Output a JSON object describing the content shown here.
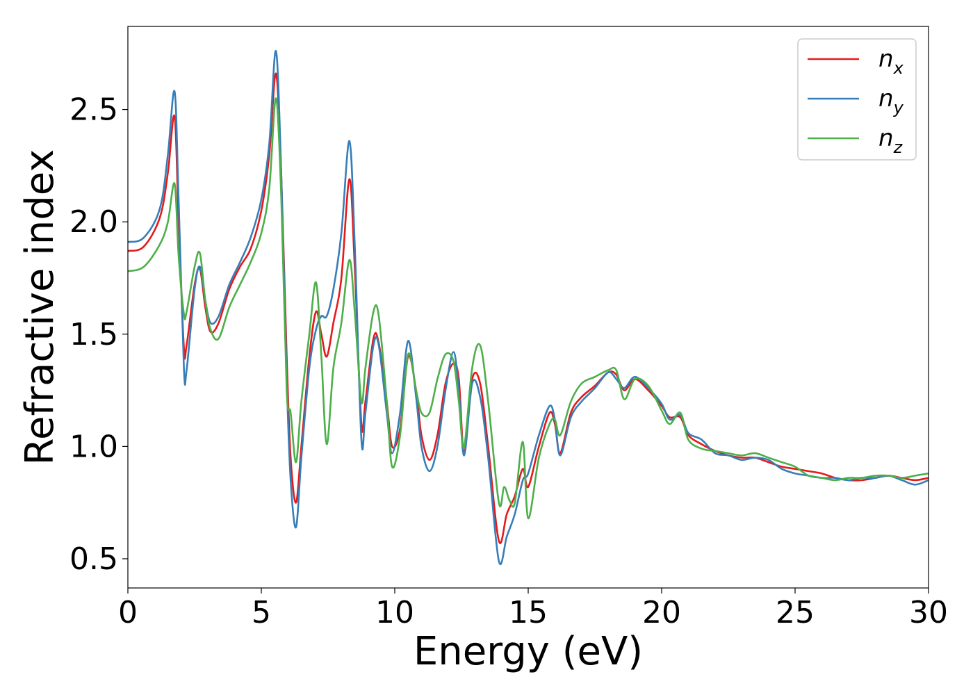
{
  "chart_data": {
    "type": "line",
    "xlabel": "Energy (eV)",
    "ylabel": "Refractive index",
    "xlim": [
      0,
      30
    ],
    "ylim": [
      0.37,
      2.87
    ],
    "xticks": [
      0,
      5,
      10,
      15,
      20,
      25,
      30
    ],
    "xtick_labels": [
      "0",
      "5",
      "10",
      "15",
      "20",
      "25",
      "30"
    ],
    "yticks": [
      0.5,
      1.0,
      1.5,
      2.0,
      2.5
    ],
    "ytick_labels": [
      "0.5",
      "1.0",
      "1.5",
      "2.0",
      "2.5"
    ],
    "grid": false,
    "legend_position": "top-right",
    "series": [
      {
        "name": "n",
        "sub": "x",
        "color": "#e41a1c",
        "points": [
          [
            0,
            1.87
          ],
          [
            0.6,
            1.89
          ],
          [
            1.2,
            2.02
          ],
          [
            1.5,
            2.22
          ],
          [
            1.75,
            2.47
          ],
          [
            1.9,
            2.0
          ],
          [
            2.1,
            1.44
          ],
          [
            2.2,
            1.45
          ],
          [
            2.5,
            1.72
          ],
          [
            2.7,
            1.79
          ],
          [
            2.9,
            1.62
          ],
          [
            3.1,
            1.51
          ],
          [
            3.4,
            1.55
          ],
          [
            3.8,
            1.7
          ],
          [
            4.2,
            1.8
          ],
          [
            4.6,
            1.88
          ],
          [
            5.0,
            2.05
          ],
          [
            5.3,
            2.3
          ],
          [
            5.55,
            2.66
          ],
          [
            5.75,
            2.2
          ],
          [
            5.95,
            1.4
          ],
          [
            6.1,
            0.95
          ],
          [
            6.3,
            0.75
          ],
          [
            6.5,
            1.0
          ],
          [
            6.8,
            1.4
          ],
          [
            7.05,
            1.6
          ],
          [
            7.25,
            1.5
          ],
          [
            7.45,
            1.4
          ],
          [
            7.7,
            1.55
          ],
          [
            8.0,
            1.75
          ],
          [
            8.3,
            2.19
          ],
          [
            8.5,
            1.8
          ],
          [
            8.75,
            1.1
          ],
          [
            8.9,
            1.2
          ],
          [
            9.2,
            1.48
          ],
          [
            9.4,
            1.46
          ],
          [
            9.7,
            1.2
          ],
          [
            9.9,
            1.0
          ],
          [
            10.2,
            1.08
          ],
          [
            10.5,
            1.4
          ],
          [
            10.8,
            1.25
          ],
          [
            11.0,
            1.05
          ],
          [
            11.3,
            0.94
          ],
          [
            11.6,
            1.05
          ],
          [
            11.9,
            1.28
          ],
          [
            12.2,
            1.37
          ],
          [
            12.4,
            1.3
          ],
          [
            12.6,
            0.98
          ],
          [
            12.9,
            1.3
          ],
          [
            13.2,
            1.28
          ],
          [
            13.5,
            1.0
          ],
          [
            13.9,
            0.58
          ],
          [
            14.2,
            0.7
          ],
          [
            14.5,
            0.78
          ],
          [
            14.8,
            0.9
          ],
          [
            15.0,
            0.82
          ],
          [
            15.4,
            1.0
          ],
          [
            15.8,
            1.15
          ],
          [
            16.0,
            1.1
          ],
          [
            16.2,
            0.97
          ],
          [
            16.6,
            1.15
          ],
          [
            17.0,
            1.22
          ],
          [
            17.5,
            1.27
          ],
          [
            18.0,
            1.33
          ],
          [
            18.3,
            1.32
          ],
          [
            18.6,
            1.25
          ],
          [
            19.0,
            1.3
          ],
          [
            19.5,
            1.25
          ],
          [
            20.0,
            1.18
          ],
          [
            20.3,
            1.13
          ],
          [
            20.7,
            1.13
          ],
          [
            21.0,
            1.05
          ],
          [
            21.5,
            1.01
          ],
          [
            22.0,
            0.98
          ],
          [
            22.5,
            0.96
          ],
          [
            23.0,
            0.95
          ],
          [
            23.5,
            0.95
          ],
          [
            24.0,
            0.93
          ],
          [
            24.5,
            0.91
          ],
          [
            25.0,
            0.9
          ],
          [
            25.5,
            0.89
          ],
          [
            26.0,
            0.88
          ],
          [
            26.5,
            0.86
          ],
          [
            27.0,
            0.85
          ],
          [
            27.5,
            0.85
          ],
          [
            28.0,
            0.86
          ],
          [
            28.5,
            0.87
          ],
          [
            29.0,
            0.86
          ],
          [
            29.5,
            0.85
          ],
          [
            30.0,
            0.86
          ]
        ]
      },
      {
        "name": "n",
        "sub": "y",
        "color": "#377eb8",
        "points": [
          [
            0,
            1.91
          ],
          [
            0.6,
            1.93
          ],
          [
            1.2,
            2.06
          ],
          [
            1.5,
            2.3
          ],
          [
            1.75,
            2.58
          ],
          [
            1.9,
            2.1
          ],
          [
            2.1,
            1.35
          ],
          [
            2.2,
            1.34
          ],
          [
            2.5,
            1.7
          ],
          [
            2.7,
            1.8
          ],
          [
            2.9,
            1.65
          ],
          [
            3.1,
            1.55
          ],
          [
            3.4,
            1.58
          ],
          [
            3.8,
            1.72
          ],
          [
            4.2,
            1.82
          ],
          [
            4.6,
            1.93
          ],
          [
            5.0,
            2.1
          ],
          [
            5.3,
            2.35
          ],
          [
            5.55,
            2.76
          ],
          [
            5.75,
            2.2
          ],
          [
            5.95,
            1.3
          ],
          [
            6.1,
            0.85
          ],
          [
            6.3,
            0.64
          ],
          [
            6.5,
            0.95
          ],
          [
            6.8,
            1.35
          ],
          [
            7.05,
            1.52
          ],
          [
            7.25,
            1.58
          ],
          [
            7.45,
            1.58
          ],
          [
            7.7,
            1.7
          ],
          [
            8.0,
            1.95
          ],
          [
            8.3,
            2.36
          ],
          [
            8.5,
            1.9
          ],
          [
            8.75,
            1.03
          ],
          [
            8.9,
            1.15
          ],
          [
            9.2,
            1.45
          ],
          [
            9.4,
            1.45
          ],
          [
            9.7,
            1.15
          ],
          [
            9.9,
            0.97
          ],
          [
            10.2,
            1.15
          ],
          [
            10.5,
            1.47
          ],
          [
            10.8,
            1.22
          ],
          [
            11.0,
            1.0
          ],
          [
            11.3,
            0.89
          ],
          [
            11.6,
            1.0
          ],
          [
            11.9,
            1.25
          ],
          [
            12.2,
            1.42
          ],
          [
            12.4,
            1.25
          ],
          [
            12.6,
            0.96
          ],
          [
            12.9,
            1.28
          ],
          [
            13.2,
            1.22
          ],
          [
            13.5,
            0.95
          ],
          [
            13.9,
            0.49
          ],
          [
            14.2,
            0.6
          ],
          [
            14.5,
            0.7
          ],
          [
            14.8,
            0.85
          ],
          [
            15.0,
            0.88
          ],
          [
            15.4,
            1.05
          ],
          [
            15.8,
            1.18
          ],
          [
            16.0,
            1.12
          ],
          [
            16.2,
            0.96
          ],
          [
            16.6,
            1.13
          ],
          [
            17.0,
            1.2
          ],
          [
            17.5,
            1.26
          ],
          [
            18.0,
            1.33
          ],
          [
            18.3,
            1.3
          ],
          [
            18.6,
            1.26
          ],
          [
            19.0,
            1.31
          ],
          [
            19.5,
            1.26
          ],
          [
            20.0,
            1.19
          ],
          [
            20.3,
            1.12
          ],
          [
            20.7,
            1.14
          ],
          [
            21.0,
            1.06
          ],
          [
            21.5,
            1.03
          ],
          [
            22.0,
            0.97
          ],
          [
            22.5,
            0.96
          ],
          [
            23.0,
            0.94
          ],
          [
            23.5,
            0.95
          ],
          [
            24.0,
            0.94
          ],
          [
            24.5,
            0.9
          ],
          [
            25.0,
            0.88
          ],
          [
            25.5,
            0.87
          ],
          [
            26.0,
            0.86
          ],
          [
            26.5,
            0.86
          ],
          [
            27.0,
            0.85
          ],
          [
            27.5,
            0.86
          ],
          [
            28.0,
            0.86
          ],
          [
            28.5,
            0.87
          ],
          [
            29.0,
            0.85
          ],
          [
            29.5,
            0.83
          ],
          [
            30.0,
            0.85
          ]
        ]
      },
      {
        "name": "n",
        "sub": "z",
        "color": "#4daf4a",
        "points": [
          [
            0,
            1.78
          ],
          [
            0.6,
            1.8
          ],
          [
            1.2,
            1.9
          ],
          [
            1.5,
            2.0
          ],
          [
            1.75,
            2.17
          ],
          [
            1.9,
            1.85
          ],
          [
            2.1,
            1.59
          ],
          [
            2.2,
            1.6
          ],
          [
            2.5,
            1.8
          ],
          [
            2.7,
            1.86
          ],
          [
            2.9,
            1.65
          ],
          [
            3.1,
            1.52
          ],
          [
            3.4,
            1.48
          ],
          [
            3.8,
            1.62
          ],
          [
            4.2,
            1.72
          ],
          [
            4.6,
            1.82
          ],
          [
            5.0,
            1.95
          ],
          [
            5.3,
            2.15
          ],
          [
            5.55,
            2.55
          ],
          [
            5.75,
            2.1
          ],
          [
            5.95,
            1.25
          ],
          [
            6.1,
            1.15
          ],
          [
            6.3,
            0.93
          ],
          [
            6.5,
            1.2
          ],
          [
            6.8,
            1.5
          ],
          [
            7.05,
            1.73
          ],
          [
            7.25,
            1.4
          ],
          [
            7.45,
            1.01
          ],
          [
            7.7,
            1.35
          ],
          [
            8.0,
            1.55
          ],
          [
            8.3,
            1.83
          ],
          [
            8.5,
            1.6
          ],
          [
            8.75,
            1.2
          ],
          [
            8.9,
            1.35
          ],
          [
            9.2,
            1.6
          ],
          [
            9.4,
            1.58
          ],
          [
            9.7,
            1.2
          ],
          [
            9.9,
            0.91
          ],
          [
            10.2,
            1.05
          ],
          [
            10.5,
            1.41
          ],
          [
            10.8,
            1.25
          ],
          [
            11.0,
            1.15
          ],
          [
            11.3,
            1.15
          ],
          [
            11.6,
            1.3
          ],
          [
            11.9,
            1.41
          ],
          [
            12.2,
            1.38
          ],
          [
            12.4,
            1.2
          ],
          [
            12.6,
            1.0
          ],
          [
            12.9,
            1.35
          ],
          [
            13.2,
            1.45
          ],
          [
            13.5,
            1.2
          ],
          [
            13.9,
            0.75
          ],
          [
            14.1,
            0.82
          ],
          [
            14.3,
            0.76
          ],
          [
            14.5,
            0.75
          ],
          [
            14.8,
            1.02
          ],
          [
            15.0,
            0.68
          ],
          [
            15.4,
            0.95
          ],
          [
            15.8,
            1.1
          ],
          [
            16.0,
            1.12
          ],
          [
            16.2,
            1.05
          ],
          [
            16.6,
            1.2
          ],
          [
            17.0,
            1.28
          ],
          [
            17.5,
            1.31
          ],
          [
            18.0,
            1.34
          ],
          [
            18.3,
            1.34
          ],
          [
            18.6,
            1.21
          ],
          [
            19.0,
            1.3
          ],
          [
            19.5,
            1.27
          ],
          [
            20.0,
            1.16
          ],
          [
            20.3,
            1.1
          ],
          [
            20.7,
            1.15
          ],
          [
            21.0,
            1.03
          ],
          [
            21.5,
            0.99
          ],
          [
            22.0,
            0.98
          ],
          [
            22.5,
            0.97
          ],
          [
            23.0,
            0.96
          ],
          [
            23.5,
            0.97
          ],
          [
            24.0,
            0.95
          ],
          [
            24.5,
            0.93
          ],
          [
            25.0,
            0.91
          ],
          [
            25.5,
            0.87
          ],
          [
            26.0,
            0.86
          ],
          [
            26.5,
            0.85
          ],
          [
            27.0,
            0.86
          ],
          [
            27.5,
            0.86
          ],
          [
            28.0,
            0.87
          ],
          [
            28.5,
            0.87
          ],
          [
            29.0,
            0.86
          ],
          [
            29.5,
            0.87
          ],
          [
            30.0,
            0.88
          ]
        ]
      }
    ]
  }
}
